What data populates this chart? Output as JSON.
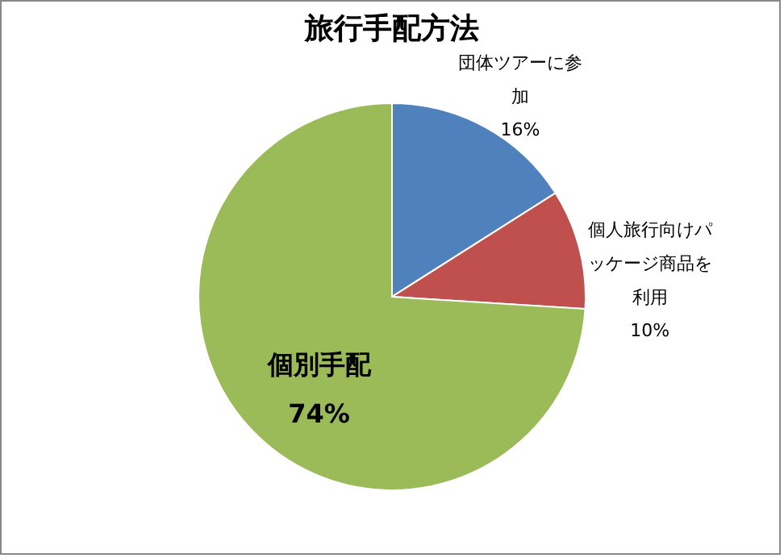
{
  "chart_data": {
    "type": "pie",
    "title": "旅行手配方法",
    "categories": [
      "団体ツアーに参加",
      "個人旅行向けパッケージ商品を利用",
      "個別手配"
    ],
    "values": [
      16,
      10,
      74
    ],
    "colors": [
      "#4f81bd",
      "#c0504d",
      "#9bbb59"
    ],
    "value_labels": [
      "16%",
      "10%",
      "74%"
    ],
    "legend": false
  }
}
